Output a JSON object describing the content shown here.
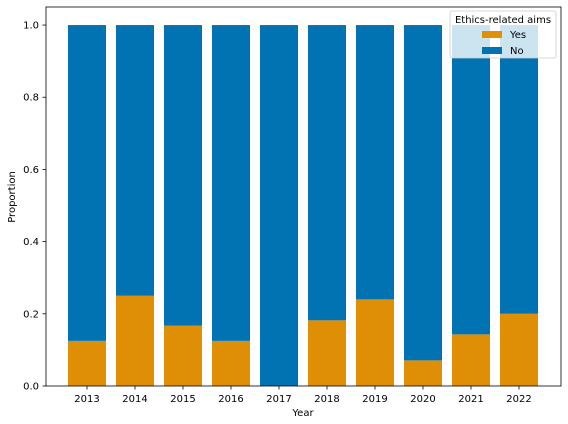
{
  "chart_data": {
    "type": "bar",
    "stacked": true,
    "title": "",
    "xlabel": "Year",
    "ylabel": "Proportion",
    "ylim": [
      0,
      1.05
    ],
    "yticks": [
      "0.0",
      "0.2",
      "0.4",
      "0.6",
      "0.8",
      "1.0"
    ],
    "categories": [
      "2013",
      "2014",
      "2015",
      "2016",
      "2017",
      "2018",
      "2019",
      "2020",
      "2021",
      "2022"
    ],
    "legend": {
      "title": "Ethics-related aims",
      "placement": "top-right"
    },
    "series": [
      {
        "name": "Yes",
        "color": "#de8f05",
        "values": [
          0.125,
          0.25,
          0.167,
          0.125,
          0.0,
          0.182,
          0.24,
          0.071,
          0.143,
          0.2
        ]
      },
      {
        "name": "No",
        "color": "#0173b2",
        "values": [
          0.875,
          0.75,
          0.833,
          0.875,
          1.0,
          0.818,
          0.76,
          0.929,
          0.857,
          0.8
        ]
      }
    ],
    "grid": false
  }
}
